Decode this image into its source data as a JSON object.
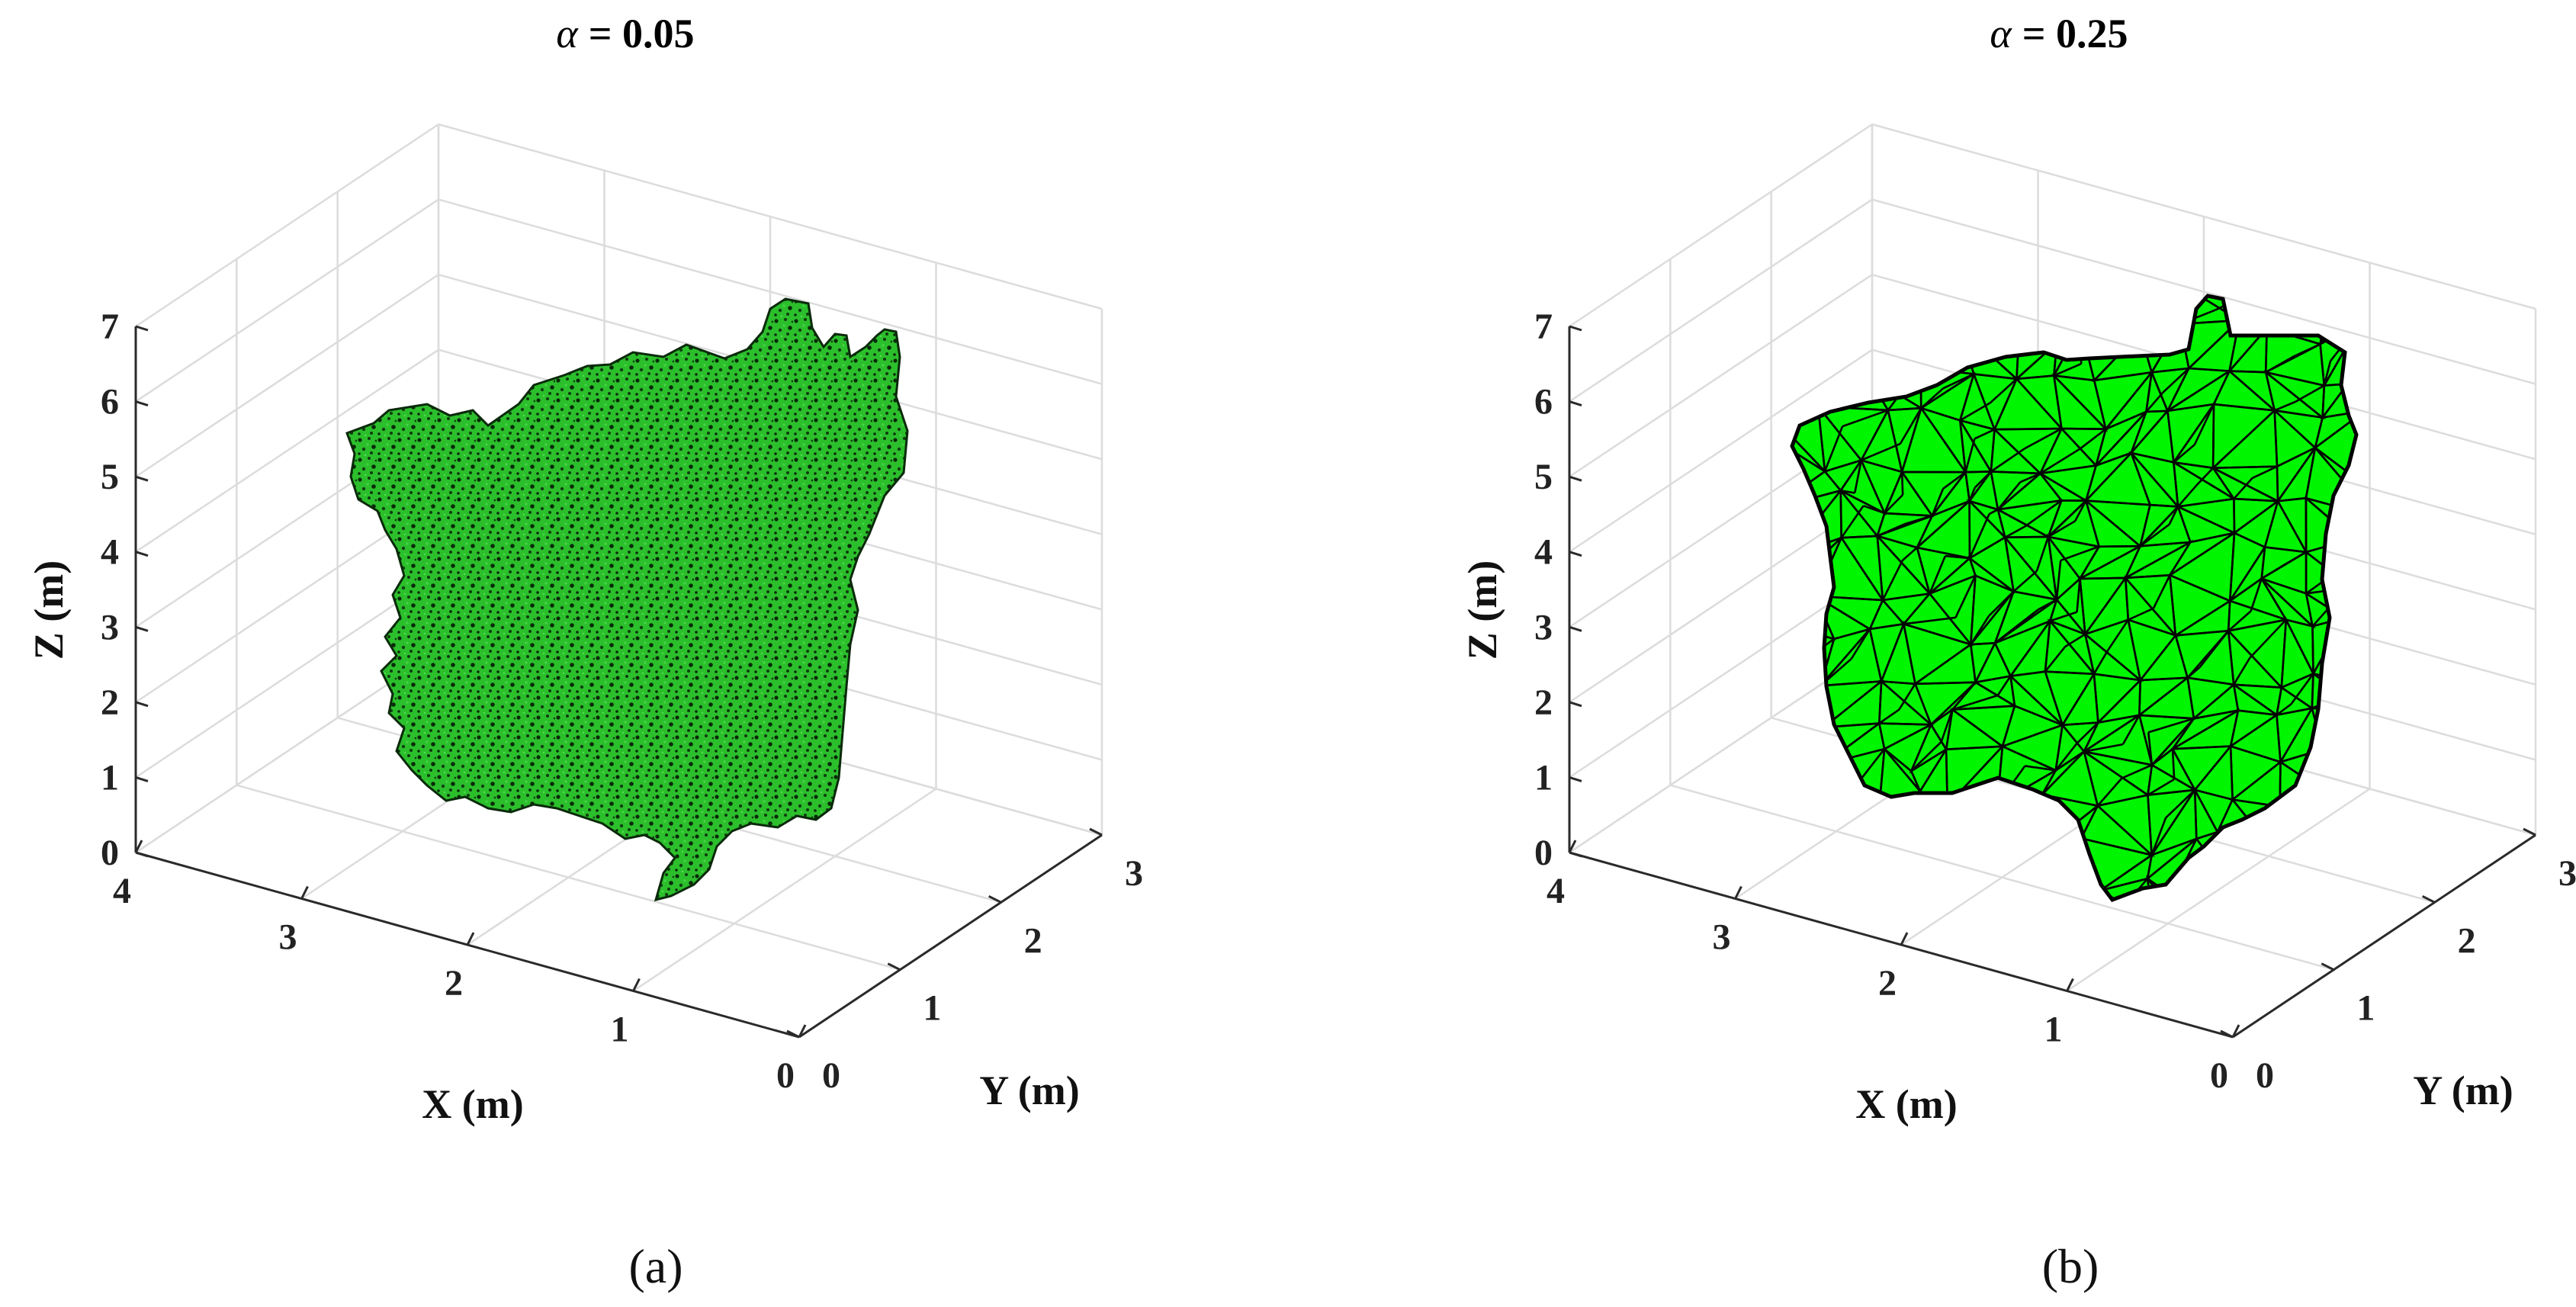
{
  "chart_data": [
    {
      "type": "3d-surface",
      "panel": "(a)",
      "title_symbol": "α",
      "title_value": "= 0.05",
      "xlabel": "X (m)",
      "ylabel": "Y (m)",
      "zlabel": "Z (m)",
      "xlim": [
        0,
        4
      ],
      "ylim": [
        0,
        3
      ],
      "zlim": [
        0,
        7
      ],
      "xticks": [
        "0",
        "1",
        "2",
        "3",
        "4"
      ],
      "yticks": [
        "0",
        "1",
        "2",
        "3"
      ],
      "zticks": [
        "0",
        "1",
        "2",
        "3",
        "4",
        "5",
        "6",
        "7"
      ],
      "grid": true,
      "surface_color": "#22b322",
      "edge_color": "#000000",
      "style": "dense mesh"
    },
    {
      "type": "3d-surface",
      "panel": "(b)",
      "title_symbol": "α",
      "title_value": "= 0.25",
      "xlabel": "X (m)",
      "ylabel": "Y (m)",
      "zlabel": "Z (m)",
      "xlim": [
        0,
        4
      ],
      "ylim": [
        0,
        3
      ],
      "zlim": [
        0,
        7
      ],
      "xticks": [
        "0",
        "1",
        "2",
        "3",
        "4"
      ],
      "yticks": [
        "0",
        "1",
        "2",
        "3"
      ],
      "zticks": [
        "0",
        "1",
        "2",
        "3",
        "4",
        "5",
        "6",
        "7"
      ],
      "grid": true,
      "surface_color": "#00ff00",
      "edge_color": "#000000",
      "style": "coarse triangular mesh"
    }
  ]
}
